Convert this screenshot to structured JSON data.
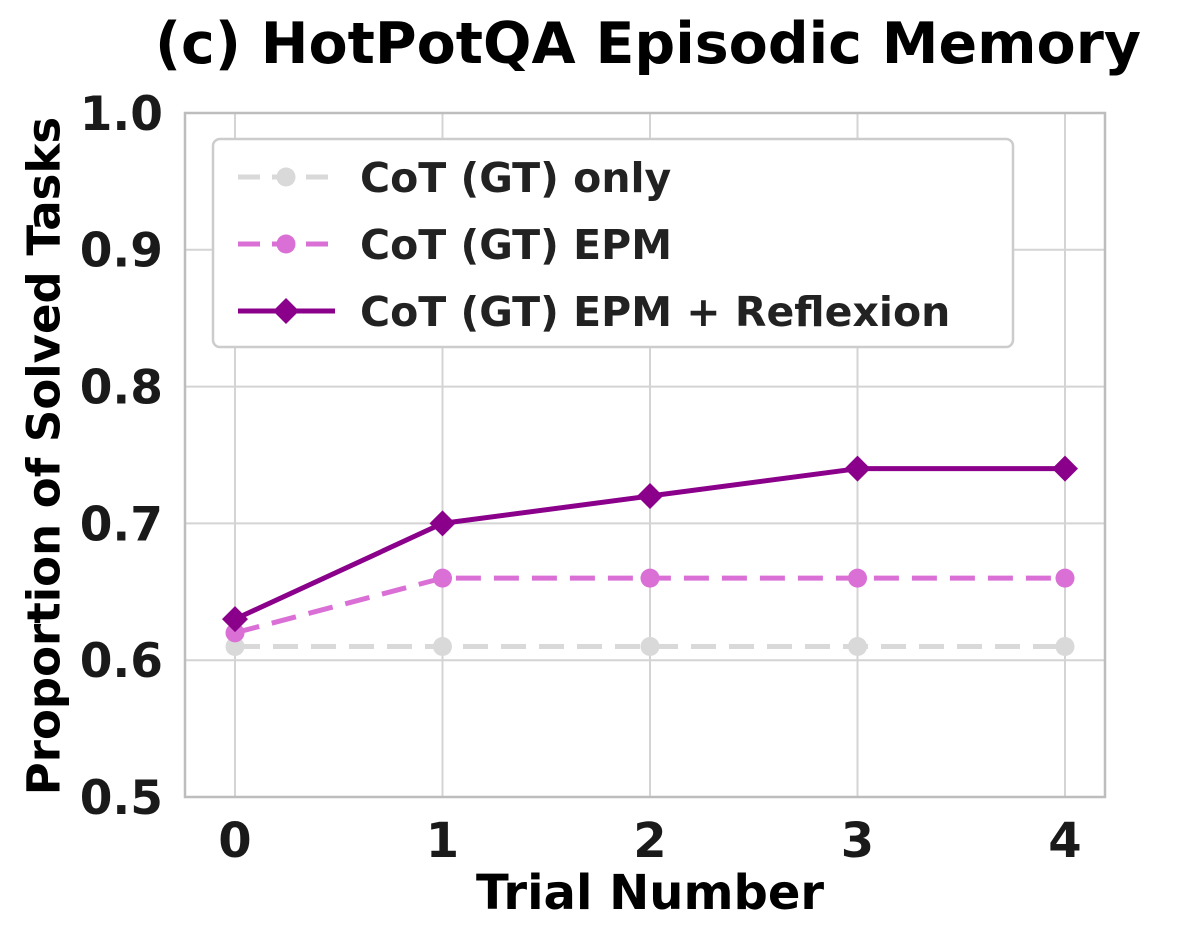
{
  "chart_data": {
    "type": "line",
    "title": "(c) HotPotQA Episodic Memory",
    "xlabel": "Trial Number",
    "ylabel": "Proportion of Solved Tasks",
    "x": [
      0,
      1,
      2,
      3,
      4
    ],
    "xticks": [
      "0",
      "1",
      "2",
      "3",
      "4"
    ],
    "yticks": [
      "0.5",
      "0.6",
      "0.7",
      "0.8",
      "0.9",
      "1.0"
    ],
    "ylim": [
      0.5,
      1.0
    ],
    "grid": true,
    "legend_position": "upper left",
    "series": [
      {
        "name": "CoT (GT) only",
        "values": [
          0.61,
          0.61,
          0.61,
          0.61,
          0.61
        ],
        "color": "#d9d9d9",
        "line_style": "dashed",
        "marker": "circle"
      },
      {
        "name": "CoT (GT) EPM",
        "values": [
          0.62,
          0.66,
          0.66,
          0.66,
          0.66
        ],
        "color": "#da70d6",
        "line_style": "dashed",
        "marker": "circle"
      },
      {
        "name": "CoT (GT) EPM + Reflexion",
        "values": [
          0.63,
          0.7,
          0.72,
          0.74,
          0.74
        ],
        "color": "#8b008b",
        "line_style": "solid",
        "marker": "diamond"
      }
    ],
    "colors": {
      "background": "#ffffff",
      "grid": "#d4d4d4",
      "axis_border": "#bdbdbd",
      "tick_label": "#1a1a1a",
      "legend_border": "#cccccc",
      "legend_background": "#ffffff",
      "legend_text": "#222222"
    }
  }
}
